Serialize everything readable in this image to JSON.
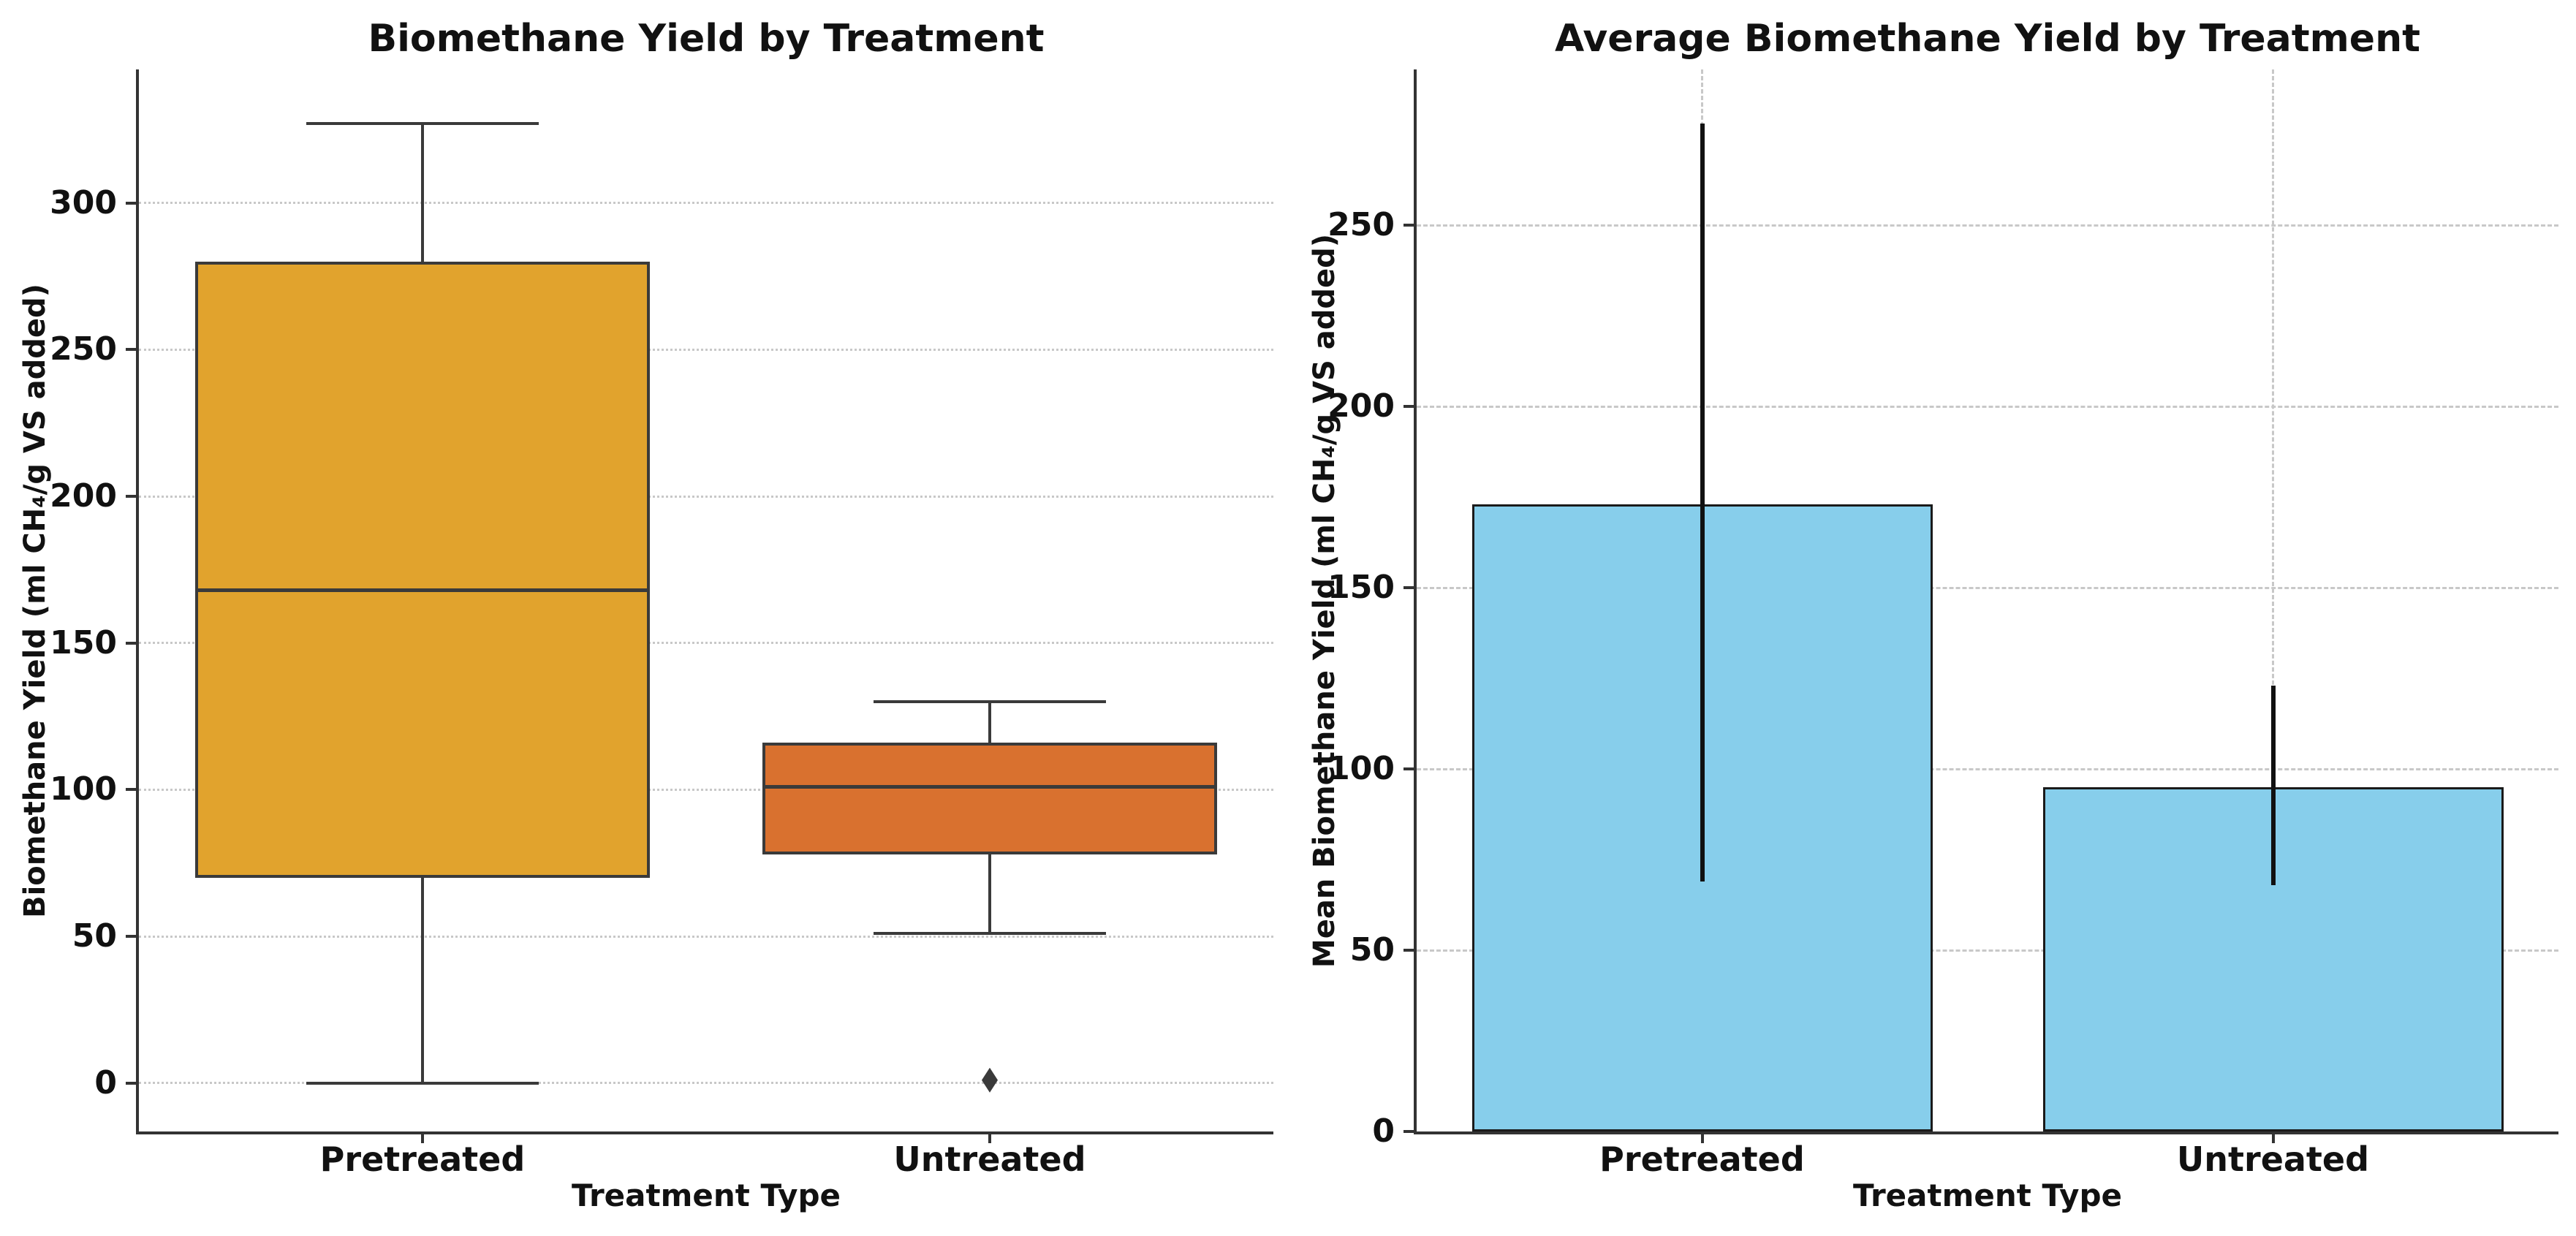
{
  "figure": {
    "background": "#FFFFFF"
  },
  "style": {
    "text_color": "#111111",
    "grid_color": "#C8C8C8",
    "spine_color": "#333333",
    "box_edge_color": "#3A3A3A",
    "error_bar_color": "#111111"
  },
  "chart_data": [
    {
      "type": "box",
      "title": "Biomethane Yield by Treatment",
      "xlabel": "Treatment Type",
      "ylabel": "Biomethane Yield (ml CH₄/g VS added)",
      "categories": [
        "Pretreated",
        "Untreated"
      ],
      "yticks": [
        0,
        50,
        100,
        150,
        200,
        250,
        300
      ],
      "ylim": [
        -16.5,
        345.5
      ],
      "grid": {
        "horizontal": "dotted",
        "vertical": false
      },
      "legend": false,
      "series": [
        {
          "category": "Pretreated",
          "whisker_low": 0,
          "q1": 70,
          "median": 168,
          "q3": 280,
          "whisker_high": 327,
          "outliers": [],
          "fill_color": "#E1A32D"
        },
        {
          "category": "Untreated",
          "whisker_low": 51,
          "q1": 78,
          "median": 101,
          "q3": 116,
          "whisker_high": 130,
          "outliers": [
            1
          ],
          "fill_color": "#D9712F"
        }
      ]
    },
    {
      "type": "bar",
      "title": "Average Biomethane Yield by Treatment",
      "xlabel": "Treatment Type",
      "ylabel": "Mean Biomethane Yield (ml CH₄/g VS added)",
      "categories": [
        "Pretreated",
        "Untreated"
      ],
      "yticks": [
        0,
        50,
        100,
        150,
        200,
        250
      ],
      "ylim": [
        0,
        293
      ],
      "grid": {
        "horizontal": "dashed",
        "vertical": "dashed"
      },
      "legend": false,
      "bar_fill_color": "#87CEEB",
      "bar_edge_color": "#1A1A1A",
      "series": [
        {
          "category": "Pretreated",
          "mean": 173,
          "error_low": 69,
          "error_high": 278
        },
        {
          "category": "Untreated",
          "mean": 95,
          "error_low": 68,
          "error_high": 123
        }
      ]
    }
  ]
}
